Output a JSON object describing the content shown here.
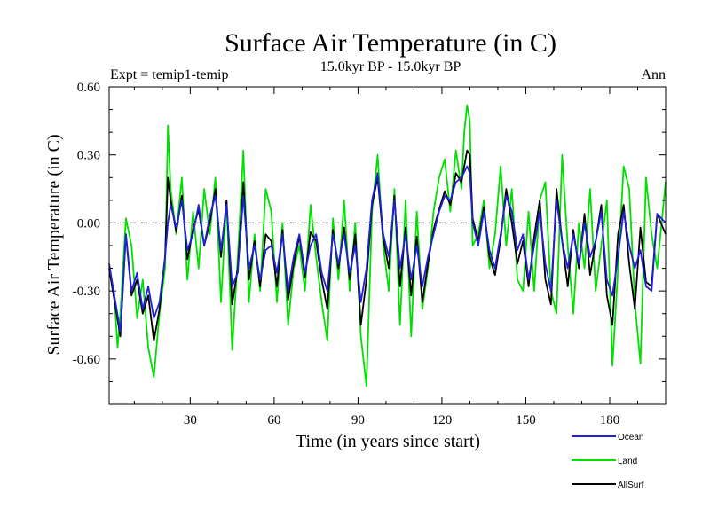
{
  "chart_data": {
    "type": "line",
    "title": "Surface Air Temperature (in C)",
    "subtitle": "15.0kyr BP - 15.0kyr BP",
    "left_label": "Expt = temip1-temip",
    "right_label": "Ann",
    "xlabel": "Time (in years since start)",
    "ylabel": "Surface Air Temperature (in C)",
    "xlim": [
      1,
      200
    ],
    "ylim": [
      -0.8,
      0.6
    ],
    "xticks": [
      30,
      60,
      90,
      120,
      150,
      180
    ],
    "xtick_labels": [
      "30",
      "60",
      "90",
      "120",
      "150",
      "180"
    ],
    "yticks": [
      0.6,
      0.3,
      0.0,
      -0.3,
      -0.6
    ],
    "ytick_labels": [
      "0.60",
      "0.30",
      "0.00",
      "-0.30",
      "-0.60"
    ],
    "zero_line": 0,
    "colors": {
      "ocean": "#1f1fdc",
      "land": "#00e000",
      "allsurf": "#000000",
      "axis": "#000000"
    },
    "series": [
      {
        "name": "Ocean",
        "color": "#1f1fdc",
        "x": [
          1,
          5,
          7,
          9,
          11,
          13,
          15,
          17,
          19,
          21,
          22,
          23,
          25,
          27,
          29,
          31,
          33,
          35,
          37,
          39,
          41,
          43,
          45,
          47,
          49,
          51,
          53,
          55,
          57,
          59,
          61,
          63,
          65,
          67,
          69,
          71,
          73,
          75,
          77,
          79,
          81,
          83,
          85,
          87,
          89,
          91,
          93,
          95,
          97,
          99,
          101,
          103,
          105,
          107,
          109,
          111,
          113,
          115,
          117,
          119,
          121,
          123,
          125,
          127,
          129,
          130,
          131,
          133,
          135,
          137,
          139,
          141,
          143,
          145,
          147,
          149,
          151,
          153,
          155,
          157,
          159,
          161,
          163,
          165,
          167,
          169,
          171,
          173,
          175,
          177,
          179,
          181,
          183,
          185,
          187,
          189,
          191,
          193,
          195,
          197,
          200
        ],
        "values": [
          -0.18,
          -0.48,
          -0.05,
          -0.3,
          -0.22,
          -0.38,
          -0.28,
          -0.42,
          -0.35,
          -0.15,
          0.0,
          0.08,
          -0.02,
          0.1,
          -0.12,
          -0.05,
          0.08,
          -0.1,
          0.03,
          0.12,
          -0.12,
          0.08,
          -0.28,
          -0.22,
          0.12,
          -0.2,
          -0.1,
          -0.25,
          -0.12,
          -0.1,
          -0.22,
          -0.05,
          -0.3,
          -0.15,
          -0.05,
          -0.22,
          -0.1,
          -0.05,
          -0.22,
          -0.3,
          -0.05,
          -0.18,
          -0.05,
          -0.22,
          -0.1,
          -0.35,
          -0.2,
          0.1,
          0.22,
          -0.05,
          -0.15,
          0.1,
          -0.2,
          -0.05,
          -0.25,
          -0.1,
          -0.28,
          -0.15,
          -0.05,
          0.05,
          0.12,
          0.1,
          0.18,
          0.2,
          0.25,
          0.22,
          0.0,
          -0.1,
          0.05,
          -0.12,
          -0.2,
          -0.05,
          0.12,
          0.05,
          -0.12,
          -0.05,
          -0.25,
          -0.1,
          0.05,
          -0.18,
          -0.3,
          0.1,
          -0.08,
          -0.2,
          -0.05,
          -0.18,
          0.0,
          -0.15,
          -0.08,
          0.05,
          -0.25,
          -0.32,
          -0.15,
          0.05,
          -0.1,
          -0.2,
          -0.12,
          -0.28,
          -0.3,
          0.04,
          0.0
        ]
      },
      {
        "name": "Land",
        "color": "#00e000",
        "x": [
          1,
          3,
          4,
          5,
          7,
          9,
          11,
          13,
          15,
          17,
          19,
          21,
          22,
          23,
          25,
          27,
          29,
          31,
          33,
          35,
          37,
          39,
          41,
          43,
          45,
          47,
          49,
          51,
          53,
          55,
          57,
          59,
          61,
          63,
          65,
          67,
          69,
          71,
          73,
          75,
          77,
          79,
          81,
          83,
          85,
          87,
          89,
          91,
          93,
          95,
          97,
          99,
          101,
          103,
          105,
          107,
          109,
          111,
          113,
          115,
          117,
          119,
          121,
          123,
          125,
          127,
          128,
          129,
          130,
          131,
          133,
          135,
          137,
          139,
          141,
          143,
          145,
          147,
          149,
          151,
          153,
          155,
          157,
          159,
          161,
          163,
          165,
          167,
          169,
          171,
          173,
          175,
          177,
          179,
          181,
          183,
          185,
          187,
          189,
          191,
          193,
          195,
          197,
          200
        ],
        "values": [
          -0.2,
          -0.35,
          -0.55,
          -0.4,
          0.02,
          -0.1,
          -0.42,
          -0.25,
          -0.55,
          -0.68,
          -0.4,
          -0.2,
          0.43,
          0.15,
          -0.05,
          0.2,
          -0.25,
          0.05,
          -0.2,
          0.15,
          -0.05,
          0.2,
          -0.35,
          0.1,
          -0.56,
          -0.15,
          0.32,
          -0.35,
          -0.05,
          -0.3,
          0.15,
          0.05,
          -0.35,
          0.0,
          -0.45,
          -0.2,
          -0.1,
          -0.3,
          0.08,
          -0.15,
          -0.35,
          -0.52,
          0.02,
          -0.25,
          0.1,
          -0.3,
          0.0,
          -0.5,
          -0.72,
          0.05,
          0.3,
          -0.1,
          -0.3,
          0.15,
          -0.45,
          0.1,
          -0.5,
          0.05,
          -0.38,
          -0.2,
          0.05,
          0.2,
          0.28,
          0.05,
          0.32,
          0.15,
          0.4,
          0.52,
          0.45,
          -0.1,
          -0.05,
          0.1,
          -0.2,
          -0.05,
          0.25,
          -0.1,
          0.15,
          -0.25,
          -0.3,
          0.05,
          -0.3,
          0.1,
          0.18,
          -0.3,
          -0.4,
          0.3,
          -0.1,
          -0.4,
          0.0,
          -0.2,
          0.15,
          -0.3,
          -0.1,
          0.1,
          -0.63,
          -0.2,
          0.25,
          0.15,
          -0.35,
          -0.62,
          0.2,
          -0.05,
          -0.2,
          0.18
        ]
      },
      {
        "name": "AllSurf",
        "color": "#000000",
        "x": [
          1,
          5,
          7,
          9,
          11,
          13,
          15,
          17,
          19,
          21,
          22,
          23,
          25,
          27,
          29,
          31,
          33,
          35,
          37,
          39,
          41,
          43,
          45,
          47,
          49,
          51,
          53,
          55,
          57,
          59,
          61,
          63,
          65,
          67,
          69,
          71,
          73,
          75,
          77,
          79,
          81,
          83,
          85,
          87,
          89,
          91,
          93,
          95,
          97,
          99,
          101,
          103,
          105,
          107,
          109,
          111,
          113,
          115,
          117,
          119,
          121,
          123,
          125,
          127,
          129,
          130,
          131,
          133,
          135,
          137,
          139,
          141,
          143,
          145,
          147,
          149,
          151,
          153,
          155,
          157,
          159,
          161,
          163,
          165,
          167,
          169,
          171,
          173,
          175,
          177,
          179,
          181,
          183,
          185,
          187,
          189,
          191,
          193,
          195,
          197,
          200
        ],
        "values": [
          -0.2,
          -0.5,
          -0.05,
          -0.32,
          -0.25,
          -0.4,
          -0.32,
          -0.52,
          -0.38,
          -0.15,
          0.2,
          0.1,
          -0.04,
          0.12,
          -0.16,
          -0.03,
          0.06,
          -0.1,
          0.0,
          0.15,
          -0.15,
          0.1,
          -0.36,
          -0.2,
          0.18,
          -0.25,
          -0.08,
          -0.28,
          -0.05,
          -0.08,
          -0.28,
          -0.03,
          -0.34,
          -0.18,
          -0.06,
          -0.24,
          -0.04,
          -0.08,
          -0.25,
          -0.38,
          -0.03,
          -0.2,
          -0.02,
          -0.25,
          -0.05,
          -0.45,
          -0.25,
          0.08,
          0.2,
          -0.07,
          -0.2,
          0.12,
          -0.28,
          -0.02,
          -0.32,
          -0.06,
          -0.35,
          -0.18,
          -0.03,
          0.06,
          0.14,
          0.08,
          0.22,
          0.18,
          0.32,
          0.3,
          0.02,
          -0.08,
          0.07,
          -0.15,
          -0.23,
          -0.07,
          0.15,
          0.0,
          -0.18,
          -0.08,
          -0.28,
          -0.06,
          0.1,
          -0.25,
          -0.36,
          0.15,
          -0.08,
          -0.28,
          -0.03,
          -0.2,
          0.04,
          -0.23,
          -0.08,
          0.08,
          -0.32,
          -0.45,
          -0.05,
          0.08,
          -0.18,
          -0.38,
          -0.02,
          -0.26,
          -0.28,
          0.04,
          -0.05
        ]
      }
    ]
  }
}
